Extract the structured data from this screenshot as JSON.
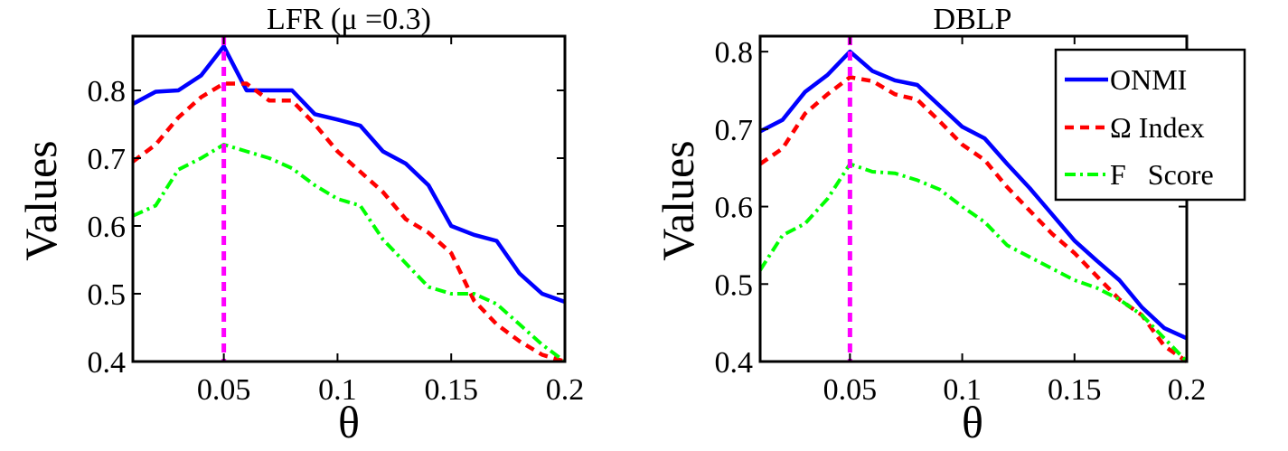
{
  "colors": {
    "onmi": "#0000ff",
    "omega": "#ff0000",
    "fscore": "#00ff00",
    "marker": "#ff00ff"
  },
  "chart_data": [
    {
      "type": "line",
      "title": "LFR (μ =0.3)",
      "xlabel": "θ",
      "ylabel": "Values",
      "xlim": [
        0.01,
        0.2
      ],
      "ylim": [
        0.4,
        0.88
      ],
      "xticks": [
        0.05,
        0.1,
        0.15,
        0.2
      ],
      "xtick_labels": [
        "0.05",
        "0.1",
        "0.15",
        "0.2"
      ],
      "yticks": [
        0.4,
        0.5,
        0.6,
        0.7,
        0.8
      ],
      "ytick_labels": [
        "0.4",
        "0.5",
        "0.6",
        "0.7",
        "0.8"
      ],
      "vline": 0.05,
      "x": [
        0.01,
        0.02,
        0.03,
        0.04,
        0.05,
        0.06,
        0.07,
        0.08,
        0.09,
        0.1,
        0.11,
        0.12,
        0.13,
        0.14,
        0.15,
        0.16,
        0.17,
        0.18,
        0.19,
        0.2
      ],
      "series": [
        {
          "key": "onmi",
          "style": "solid",
          "values": [
            0.78,
            0.798,
            0.8,
            0.822,
            0.865,
            0.8,
            0.8,
            0.8,
            0.765,
            0.757,
            0.748,
            0.71,
            0.692,
            0.66,
            0.6,
            0.587,
            0.578,
            0.53,
            0.5,
            0.488
          ]
        },
        {
          "key": "omega",
          "style": "dashed",
          "values": [
            0.695,
            0.72,
            0.76,
            0.79,
            0.81,
            0.81,
            0.785,
            0.785,
            0.75,
            0.71,
            0.68,
            0.65,
            0.61,
            0.59,
            0.56,
            0.49,
            0.455,
            0.43,
            0.41,
            0.4
          ]
        },
        {
          "key": "fscore",
          "style": "dashdot",
          "values": [
            0.615,
            0.63,
            0.683,
            0.7,
            0.72,
            0.71,
            0.7,
            0.685,
            0.66,
            0.64,
            0.63,
            0.58,
            0.545,
            0.51,
            0.5,
            0.5,
            0.485,
            0.455,
            0.425,
            0.4
          ]
        }
      ]
    },
    {
      "type": "line",
      "title": "DBLP",
      "xlabel": "θ",
      "ylabel": "Values",
      "xlim": [
        0.01,
        0.2
      ],
      "ylim": [
        0.4,
        0.82
      ],
      "xticks": [
        0.05,
        0.1,
        0.15,
        0.2
      ],
      "xtick_labels": [
        "0.05",
        "0.1",
        "0.15",
        "0.2"
      ],
      "yticks": [
        0.4,
        0.5,
        0.6,
        0.7,
        0.8
      ],
      "ytick_labels": [
        "0.4",
        "0.5",
        "0.6",
        "0.7",
        "0.8"
      ],
      "vline": 0.05,
      "legend_position": "top-right",
      "x": [
        0.01,
        0.02,
        0.03,
        0.04,
        0.05,
        0.06,
        0.07,
        0.08,
        0.09,
        0.1,
        0.11,
        0.12,
        0.13,
        0.14,
        0.15,
        0.16,
        0.17,
        0.18,
        0.19,
        0.2
      ],
      "series": [
        {
          "key": "onmi",
          "name": "ONMI",
          "style": "solid",
          "values": [
            0.697,
            0.712,
            0.748,
            0.77,
            0.8,
            0.775,
            0.763,
            0.757,
            0.73,
            0.703,
            0.688,
            0.655,
            0.624,
            0.59,
            0.556,
            0.53,
            0.505,
            0.47,
            0.443,
            0.43
          ]
        },
        {
          "key": "omega",
          "name": "Ω Index",
          "style": "dashed",
          "values": [
            0.655,
            0.675,
            0.72,
            0.745,
            0.767,
            0.762,
            0.745,
            0.738,
            0.71,
            0.68,
            0.66,
            0.625,
            0.595,
            0.565,
            0.54,
            0.51,
            0.48,
            0.46,
            0.42,
            0.4
          ]
        },
        {
          "key": "fscore",
          "name": "F   Score",
          "style": "dashdot",
          "values": [
            0.518,
            0.563,
            0.578,
            0.61,
            0.655,
            0.645,
            0.643,
            0.634,
            0.622,
            0.6,
            0.58,
            0.55,
            0.535,
            0.52,
            0.505,
            0.495,
            0.48,
            0.46,
            0.43,
            0.4
          ]
        }
      ]
    }
  ]
}
